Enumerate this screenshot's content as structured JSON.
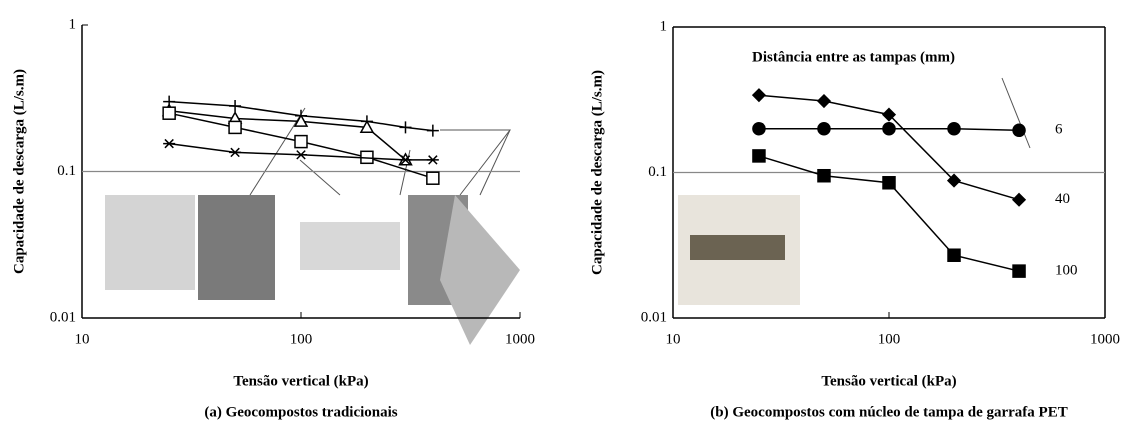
{
  "chart_data": [
    {
      "type": "line",
      "caption": "(a) Geocompostos tradicionais",
      "xlabel": "Tensão vertical (kPa)",
      "ylabel": "Capacidade de descarga (L/s.m)",
      "xlog": true,
      "ylog": true,
      "xlim": [
        10,
        1000
      ],
      "ylim": [
        0.01,
        1
      ],
      "xticks": [
        10,
        100,
        1000
      ],
      "yticks": [
        0.01,
        0.1,
        1
      ],
      "reference_line": 0.1,
      "frame": false,
      "series": [
        {
          "marker": "plus",
          "filled": false,
          "color": "#000000",
          "x": [
            25,
            50,
            100,
            200,
            300,
            400
          ],
          "values": [
            0.3,
            0.28,
            0.24,
            0.22,
            0.2,
            0.19
          ]
        },
        {
          "marker": "triangle",
          "filled": false,
          "color": "#000000",
          "x": [
            25,
            50,
            100,
            200,
            300
          ],
          "values": [
            0.26,
            0.23,
            0.22,
            0.2,
            0.12
          ]
        },
        {
          "marker": "square",
          "filled": false,
          "color": "#000000",
          "x": [
            25,
            50,
            100,
            200,
            400
          ],
          "values": [
            0.25,
            0.2,
            0.16,
            0.125,
            0.09
          ]
        },
        {
          "marker": "asterisk",
          "filled": false,
          "color": "#000000",
          "x": [
            25,
            50,
            100,
            300,
            400
          ],
          "values": [
            0.155,
            0.135,
            0.13,
            0.12,
            0.12
          ]
        }
      ]
    },
    {
      "type": "line",
      "caption": "(b) Geocompostos com núcleo de tampa de garrafa PET",
      "xlabel": "Tensão vertical (kPa)",
      "ylabel": "Capacidade de descarga (L/s.m)",
      "legend_title": "Distância entre as tampas (mm)",
      "xlog": true,
      "ylog": true,
      "xlim": [
        10,
        1000
      ],
      "ylim": [
        0.01,
        1
      ],
      "xticks": [
        10,
        100,
        1000
      ],
      "yticks": [
        0.01,
        0.1,
        1
      ],
      "reference_line": 0.1,
      "frame": true,
      "series": [
        {
          "name": "6",
          "marker": "circle",
          "filled": true,
          "color": "#000000",
          "x": [
            25,
            50,
            100,
            200,
            400
          ],
          "values": [
            0.2,
            0.2,
            0.2,
            0.2,
            0.195
          ]
        },
        {
          "name": "40",
          "marker": "diamond",
          "filled": true,
          "color": "#000000",
          "x": [
            25,
            50,
            100,
            200,
            400
          ],
          "values": [
            0.34,
            0.31,
            0.25,
            0.088,
            0.065
          ]
        },
        {
          "name": "100",
          "marker": "square",
          "filled": true,
          "color": "#000000",
          "x": [
            25,
            50,
            100,
            200,
            400
          ],
          "values": [
            0.13,
            0.095,
            0.085,
            0.027,
            0.021
          ]
        }
      ]
    }
  ]
}
